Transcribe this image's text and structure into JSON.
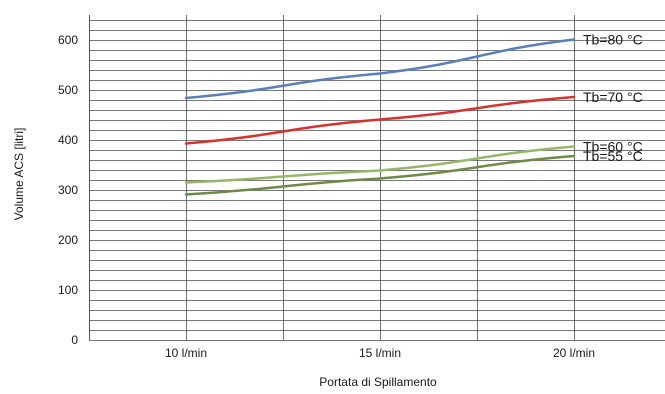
{
  "chart_data": {
    "type": "line",
    "title": "",
    "xlabel": "Portata di Spillamento",
    "ylabel": "Volume ACS [litri]",
    "x": [
      10,
      15,
      20
    ],
    "x_tick_labels": [
      "10 l/min",
      "15 l/min",
      "20 l/min"
    ],
    "ylim": [
      0,
      650
    ],
    "y_ticks": [
      0,
      100,
      200,
      300,
      400,
      500,
      600
    ],
    "minor_grid_step": 20,
    "grid": true,
    "series": [
      {
        "name": "Tb=80 °C",
        "values": [
          484,
          533,
          601
        ],
        "color": "#5b7fb9"
      },
      {
        "name": "Tb=70 °C",
        "values": [
          393,
          441,
          486
        ],
        "color": "#d9322c"
      },
      {
        "name": "Tb=60 °C",
        "values": [
          315,
          339,
          387
        ],
        "color": "#95b76a"
      },
      {
        "name": "Tb=55 °C",
        "values": [
          291,
          323,
          368
        ],
        "color": "#6f8a45"
      }
    ]
  }
}
